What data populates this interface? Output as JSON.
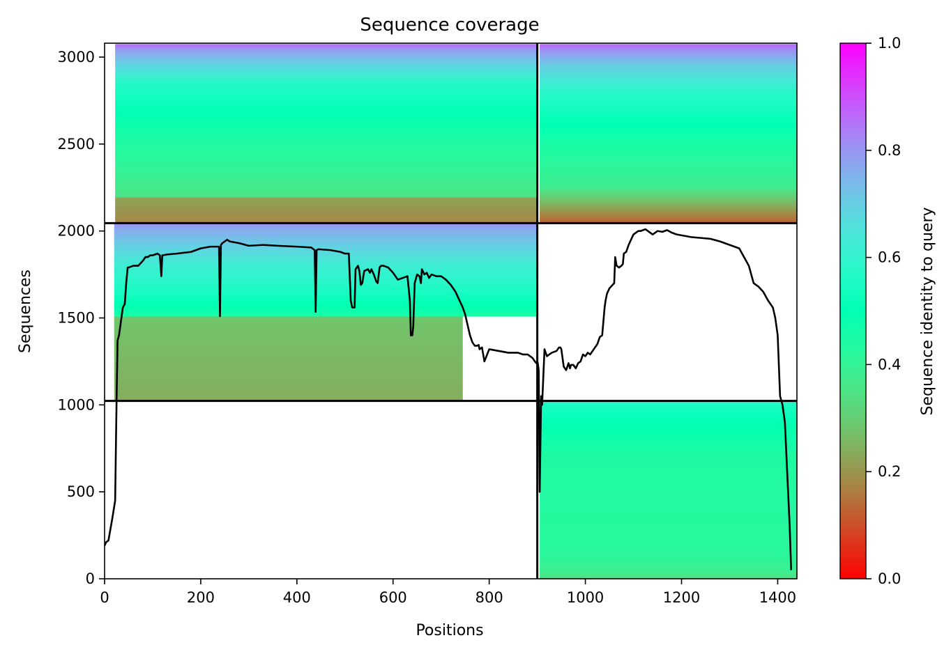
{
  "chart_data": {
    "type": "heatmap",
    "title": "Sequence coverage",
    "xlabel": "Positions",
    "ylabel": "Sequences",
    "colorbar_label": "Sequence identity to query",
    "colormap": "rainbow_r",
    "xlim": [
      0,
      1440
    ],
    "ylim": [
      0,
      3080
    ],
    "clim": [
      0,
      1
    ],
    "x_ticks": [
      0,
      200,
      400,
      600,
      800,
      1000,
      1200,
      1400
    ],
    "x_tick_labels": [
      "0",
      "200",
      "400",
      "600",
      "800",
      "1000",
      "1200",
      "1400"
    ],
    "y_ticks": [
      0,
      500,
      1000,
      1500,
      2000,
      2500,
      3000
    ],
    "y_tick_labels": [
      "0",
      "500",
      "1000",
      "1500",
      "2000",
      "2500",
      "3000"
    ],
    "colorbar_ticks": [
      0,
      0.2,
      0.4,
      0.6,
      0.8,
      1.0
    ],
    "colorbar_tick_labels": [
      "0.0",
      "0.2",
      "0.4",
      "0.6",
      "0.8",
      "1.0"
    ],
    "chain_boundaries": {
      "x": [
        900
      ],
      "y": [
        1023,
        2045
      ]
    },
    "blocks": [
      {
        "name": "chain-A-only",
        "x_range": [
          22,
          900
        ],
        "y_range": [
          2045,
          3075
        ],
        "identity_by_row": [
          [
            2045,
            0.15
          ],
          [
            2060,
            0.18
          ],
          [
            2190,
            0.22
          ],
          [
            2200,
            0.35
          ],
          [
            2350,
            0.4
          ],
          [
            2550,
            0.45
          ],
          [
            2850,
            0.57
          ],
          [
            2950,
            0.68
          ],
          [
            3050,
            0.8
          ],
          [
            3075,
            0.87
          ]
        ]
      },
      {
        "name": "chain-B-only",
        "x_range": [
          905,
          1440
        ],
        "y_range": [
          2045,
          3075
        ],
        "identity_by_row": [
          [
            2045,
            0.12
          ],
          [
            2100,
            0.18
          ],
          [
            2200,
            0.3
          ],
          [
            2260,
            0.38
          ],
          [
            2500,
            0.45
          ],
          [
            2800,
            0.58
          ],
          [
            2950,
            0.7
          ],
          [
            3050,
            0.82
          ],
          [
            3075,
            0.87
          ]
        ]
      },
      {
        "name": "paired-low-identity",
        "x_range": [
          20,
          745
        ],
        "y_range": [
          1023,
          1510
        ],
        "identity_by_row": [
          [
            1023,
            0.24
          ],
          [
            1300,
            0.26
          ],
          [
            1510,
            0.28
          ]
        ]
      },
      {
        "name": "paired-high-identity",
        "x_range": [
          20,
          900
        ],
        "y_range": [
          1510,
          2045
        ],
        "identity_by_row": [
          [
            1510,
            0.45
          ],
          [
            1650,
            0.55
          ],
          [
            1800,
            0.62
          ],
          [
            1950,
            0.72
          ],
          [
            2045,
            0.8
          ]
        ]
      },
      {
        "name": "chain-B-single",
        "x_range": [
          905,
          1440
        ],
        "y_range": [
          0,
          1023
        ],
        "identity_by_row": [
          [
            0,
            0.34
          ],
          [
            40,
            0.38
          ],
          [
            150,
            0.42
          ],
          [
            700,
            0.44
          ],
          [
            900,
            0.5
          ],
          [
            1000,
            0.55
          ],
          [
            1023,
            0.6
          ]
        ]
      }
    ],
    "coverage_line": {
      "name": "coverage",
      "color": "#000000",
      "x": [
        0,
        3,
        8,
        15,
        18,
        22,
        25,
        27,
        30,
        35,
        38,
        42,
        45,
        48,
        50,
        60,
        70,
        80,
        85,
        90,
        95,
        100,
        110,
        115,
        118,
        120,
        130,
        150,
        180,
        200,
        220,
        238,
        240,
        242,
        245,
        255,
        260,
        280,
        300,
        330,
        360,
        400,
        430,
        437,
        439,
        441,
        445,
        470,
        490,
        500,
        508,
        512,
        515,
        520,
        522,
        527,
        530,
        533,
        536,
        540,
        548,
        552,
        555,
        560,
        565,
        568,
        572,
        575,
        580,
        590,
        600,
        610,
        620,
        630,
        635,
        637,
        640,
        642,
        645,
        650,
        655,
        658,
        660,
        665,
        670,
        675,
        680,
        690,
        700,
        710,
        720,
        730,
        740,
        745,
        750,
        760,
        765,
        770,
        775,
        778,
        780,
        785,
        790,
        800,
        820,
        840,
        850,
        860,
        870,
        880,
        890,
        895,
        898,
        899,
        900,
        901,
        903,
        905,
        908,
        910,
        915,
        920,
        930,
        940,
        945,
        948,
        950,
        955,
        960,
        965,
        968,
        970,
        975,
        980,
        985,
        990,
        995,
        1000,
        1005,
        1010,
        1015,
        1020,
        1025,
        1030,
        1035,
        1040,
        1042,
        1045,
        1050,
        1060,
        1062,
        1065,
        1070,
        1075,
        1078,
        1080,
        1085,
        1090,
        1095,
        1100,
        1105,
        1110,
        1115,
        1120,
        1125,
        1130,
        1135,
        1140,
        1150,
        1160,
        1170,
        1180,
        1190,
        1200,
        1210,
        1220,
        1240,
        1260,
        1280,
        1300,
        1320,
        1330,
        1340,
        1350,
        1360,
        1370,
        1380,
        1390,
        1395,
        1400,
        1405,
        1410,
        1415,
        1420,
        1425,
        1428,
        1430,
        1432,
        1434,
        1436,
        1437,
        1438
      ],
      "y": [
        190,
        210,
        220,
        330,
        380,
        450,
        1040,
        1370,
        1400,
        1500,
        1560,
        1580,
        1700,
        1790,
        1790,
        1800,
        1800,
        1830,
        1850,
        1850,
        1860,
        1860,
        1870,
        1860,
        1740,
        1860,
        1865,
        1870,
        1880,
        1900,
        1910,
        1910,
        1510,
        1920,
        1930,
        1950,
        1940,
        1930,
        1915,
        1920,
        1915,
        1910,
        1905,
        1890,
        1535,
        1890,
        1895,
        1890,
        1880,
        1870,
        1870,
        1600,
        1560,
        1560,
        1780,
        1800,
        1770,
        1690,
        1700,
        1770,
        1780,
        1760,
        1780,
        1750,
        1710,
        1700,
        1790,
        1800,
        1800,
        1790,
        1760,
        1720,
        1730,
        1740,
        1600,
        1400,
        1400,
        1450,
        1700,
        1750,
        1740,
        1700,
        1780,
        1750,
        1760,
        1730,
        1750,
        1740,
        1740,
        1720,
        1690,
        1650,
        1590,
        1560,
        1520,
        1400,
        1360,
        1340,
        1340,
        1345,
        1320,
        1330,
        1250,
        1320,
        1310,
        1300,
        1300,
        1300,
        1290,
        1290,
        1270,
        1250,
        1240,
        1240,
        1250,
        1240,
        1200,
        500,
        1050,
        1000,
        1320,
        1280,
        1300,
        1310,
        1330,
        1330,
        1320,
        1220,
        1200,
        1240,
        1210,
        1230,
        1230,
        1210,
        1240,
        1250,
        1290,
        1280,
        1300,
        1290,
        1310,
        1330,
        1350,
        1390,
        1400,
        1560,
        1600,
        1640,
        1670,
        1700,
        1850,
        1800,
        1790,
        1800,
        1810,
        1870,
        1880,
        1920,
        1950,
        1980,
        1990,
        2000,
        2000,
        2005,
        2010,
        2000,
        1990,
        1980,
        2000,
        1995,
        2005,
        1990,
        1980,
        1975,
        1970,
        1965,
        1960,
        1955,
        1940,
        1920,
        1900,
        1850,
        1800,
        1700,
        1680,
        1650,
        1600,
        1560,
        1500,
        1400,
        1050,
        1000,
        900,
        600,
        300,
        50
      ]
    }
  }
}
